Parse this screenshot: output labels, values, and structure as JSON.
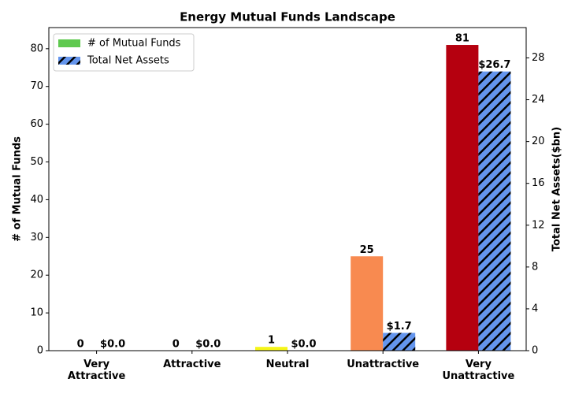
{
  "chart_data": {
    "type": "bar",
    "title": "Energy Mutual Funds Landscape",
    "categories": [
      "Very\nAttractive",
      "Attractive",
      "Neutral",
      "Unattractive",
      "Very\nUnattractive"
    ],
    "y_label": "# of Mutual Funds",
    "y2_label": "Total Net Assets($bn)",
    "series": [
      {
        "name": "# of Mutual Funds",
        "color": "#5fc94f",
        "colors": [
          "#1a9641",
          "#a6d96a",
          "#f5f518",
          "#f88a50",
          "#b5000f"
        ],
        "values": [
          0,
          0,
          1,
          25,
          81
        ]
      },
      {
        "name": "Total Net Assets",
        "color": "#6495ed",
        "hatch": true,
        "axis": "y2",
        "values": [
          0,
          0,
          0,
          1.7,
          26.7
        ],
        "value_labels": [
          "$0.0",
          "$0.0",
          "$0.0",
          "$1.7",
          "$26.7"
        ]
      }
    ],
    "ylim": [
      0,
      85.6
    ],
    "yticks": [
      0,
      10,
      20,
      30,
      40,
      50,
      60,
      70,
      80
    ],
    "y2lim": [
      0,
      30.9
    ],
    "y2ticks": [
      0,
      4,
      8,
      12,
      16,
      20,
      24,
      28
    ],
    "legend": "upper-left",
    "grid": false
  }
}
